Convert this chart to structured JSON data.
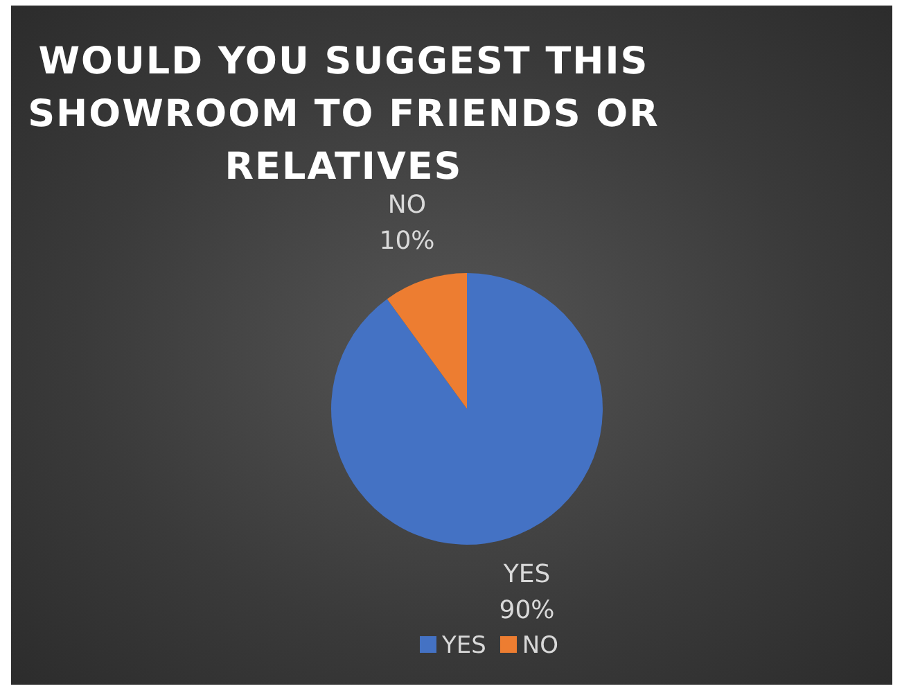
{
  "chart_data": {
    "type": "pie",
    "title": "WOULD YOU SUGGEST THIS SHOWROOM TO FRIENDS OR RELATIVES",
    "categories": [
      "YES",
      "NO"
    ],
    "values": [
      90,
      10
    ],
    "value_labels": [
      "90%",
      "10%"
    ],
    "colors": [
      "#4472c4",
      "#ed7d31"
    ],
    "legend": "bottom"
  }
}
